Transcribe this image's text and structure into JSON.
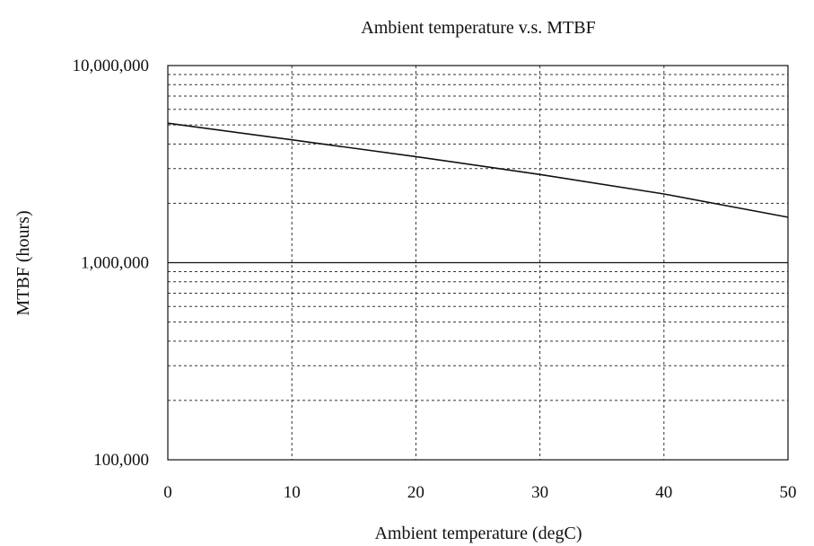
{
  "chart_data": {
    "type": "line",
    "title": "Ambient temperature v.s. MTBF",
    "xlabel": "Ambient temperature (degC)",
    "ylabel": "MTBF (hours)",
    "xlim": [
      0,
      50
    ],
    "ylim": [
      100000,
      10000000
    ],
    "y_scale": "log",
    "grid": true,
    "x_ticks": [
      0,
      10,
      20,
      30,
      40,
      50
    ],
    "x_tick_labels": [
      "0",
      "10",
      "20",
      "30",
      "40",
      "50"
    ],
    "y_ticks": [
      100000,
      1000000,
      10000000
    ],
    "y_tick_labels": [
      "100,000",
      "1,000,000",
      "10,000,000"
    ],
    "series": [
      {
        "x": [
          0,
          10,
          20,
          30,
          40,
          50
        ],
        "values": [
          5100000,
          4200000,
          3450000,
          2800000,
          2230000,
          1700000
        ]
      }
    ],
    "colors": {
      "line": "#111111",
      "grid": "#333333",
      "background": "#ffffff"
    }
  }
}
